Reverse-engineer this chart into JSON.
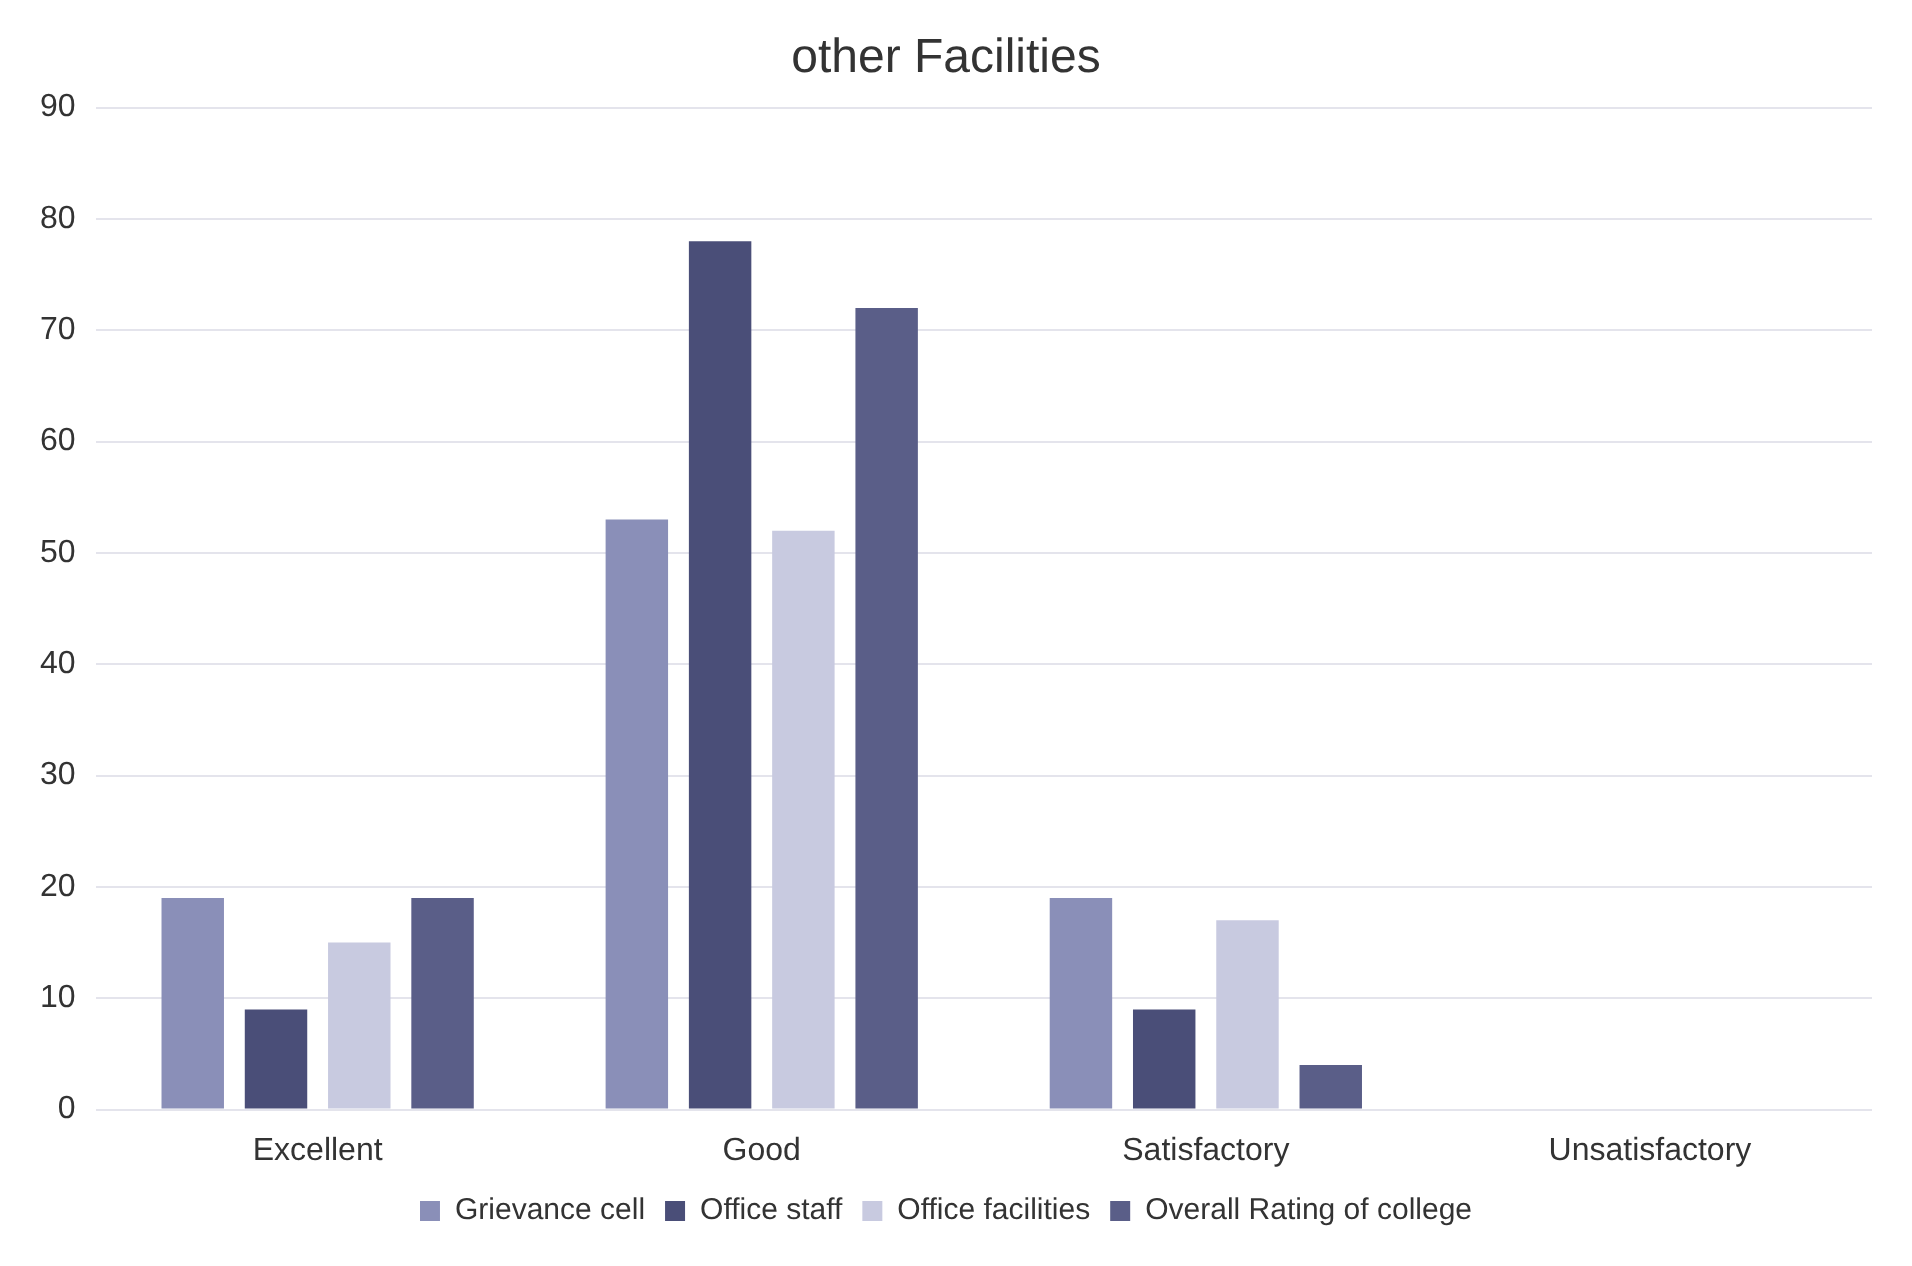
{
  "chart_data": {
    "type": "bar",
    "title": "other Facilities",
    "categories": [
      "Excellent",
      "Good",
      "Satisfactory",
      "Unsatisfactory"
    ],
    "series": [
      {
        "name": "Grievance cell",
        "color": "#8a8fb8",
        "values": [
          19,
          53,
          19,
          0
        ]
      },
      {
        "name": "Office staff",
        "color": "#4a4e78",
        "values": [
          9,
          78,
          9,
          0
        ]
      },
      {
        "name": "Office facilities",
        "color": "#c8cae0",
        "values": [
          15,
          52,
          17,
          0
        ]
      },
      {
        "name": "Overall Rating of college",
        "color": "#5a5e88",
        "values": [
          19,
          72,
          4,
          0
        ]
      }
    ],
    "ylim": [
      0,
      90
    ],
    "yticks": [
      0,
      10,
      20,
      30,
      40,
      50,
      60,
      70,
      80,
      90
    ],
    "grid": "y",
    "legend": "bottom"
  }
}
